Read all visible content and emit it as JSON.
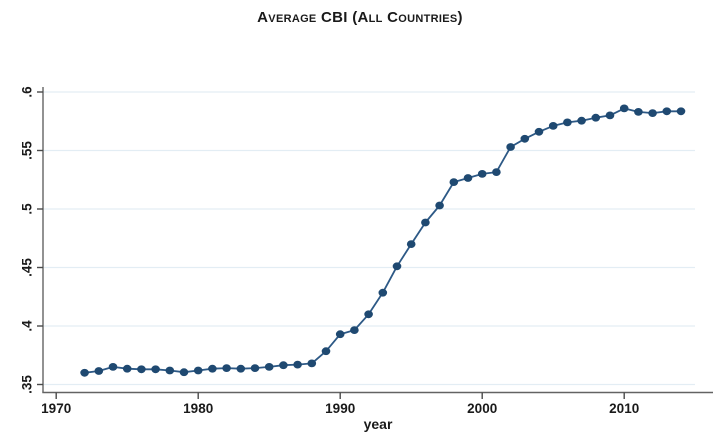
{
  "page": {
    "background": "#ffffff"
  },
  "chart_data": {
    "type": "line",
    "title": "Average CBI (All Countries)",
    "xlabel": "year",
    "ylabel": "",
    "legend": "none",
    "grid": "horizontal",
    "marker": "filled-circle",
    "xlim": [
      1969,
      2016
    ],
    "ylim": [
      0.35,
      0.6
    ],
    "xticks": [
      1970,
      1980,
      1990,
      2000,
      2010
    ],
    "yticks": [
      0.35,
      0.4,
      0.45,
      0.5,
      0.55,
      0.6
    ],
    "ytick_labels": [
      ".35",
      ".4",
      ".45",
      ".5",
      ".55",
      ".6"
    ],
    "x": [
      1972,
      1973,
      1974,
      1975,
      1976,
      1977,
      1978,
      1979,
      1980,
      1981,
      1982,
      1983,
      1984,
      1985,
      1986,
      1987,
      1988,
      1989,
      1990,
      1991,
      1992,
      1993,
      1994,
      1995,
      1996,
      1997,
      1998,
      1999,
      2000,
      2001,
      2002,
      2003,
      2004,
      2005,
      2006,
      2007,
      2008,
      2009,
      2010,
      2011,
      2012,
      2013,
      2014
    ],
    "values": [
      0.36,
      0.3615,
      0.365,
      0.3635,
      0.363,
      0.363,
      0.362,
      0.3605,
      0.362,
      0.3635,
      0.364,
      0.3635,
      0.364,
      0.365,
      0.3665,
      0.367,
      0.368,
      0.3785,
      0.393,
      0.3965,
      0.41,
      0.4285,
      0.451,
      0.47,
      0.4885,
      0.503,
      0.523,
      0.5265,
      0.53,
      0.5315,
      0.553,
      0.56,
      0.566,
      0.571,
      0.574,
      0.5755,
      0.578,
      0.58,
      0.586,
      0.583,
      0.582,
      0.5835,
      0.5835
    ],
    "colors": {
      "line": "#2d5986",
      "marker": "#1f4971",
      "grid": "#e3edf4",
      "axis": "#636363",
      "tick": "#4a4a4a",
      "text": "#1a1a1a"
    }
  }
}
